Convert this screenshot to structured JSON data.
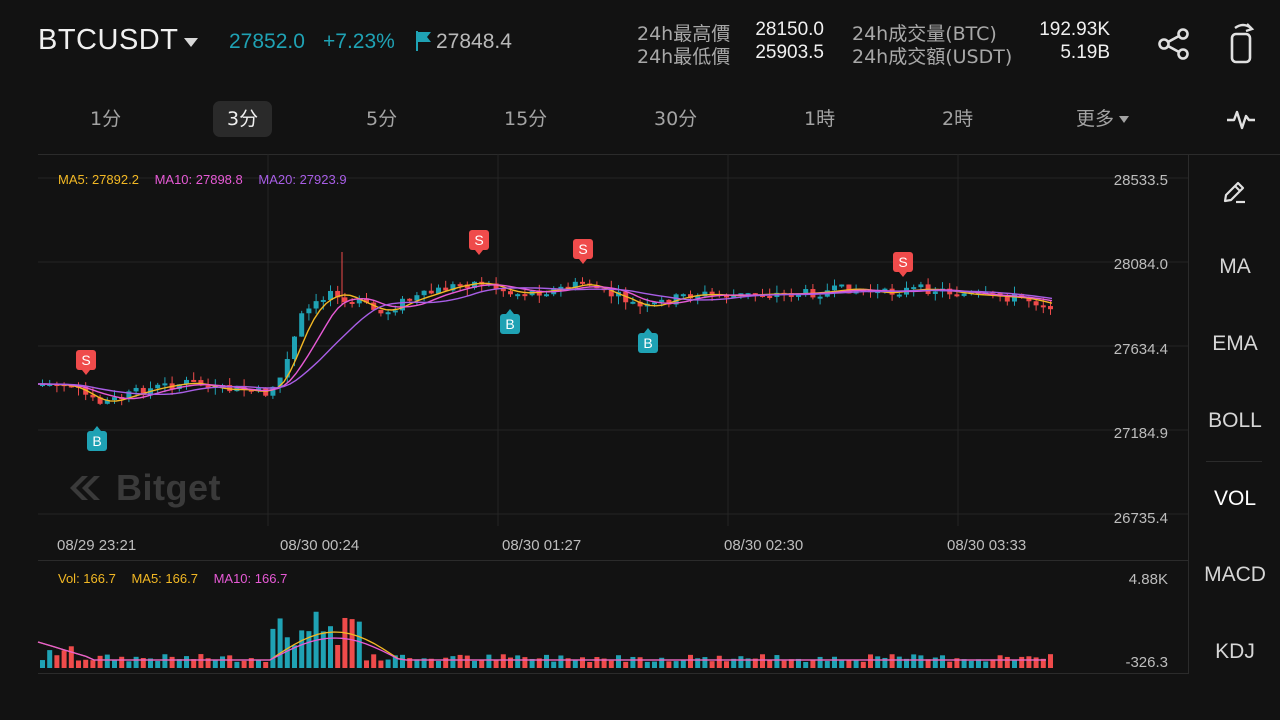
{
  "header": {
    "symbol": "BTCUSDT",
    "last_price": "27852.0",
    "change_pct": "+7.23%",
    "mark_price": "27848.4",
    "stats": {
      "high_label": "24h最高價",
      "high_value": "28150.0",
      "low_label": "24h最低價",
      "low_value": "25903.5",
      "vol_btc_label": "24h成交量(BTC)",
      "vol_btc_value": "192.93K",
      "vol_usdt_label": "24h成交額(USDT)",
      "vol_usdt_value": "5.19B"
    },
    "icons": {
      "dropdown": "chevron-down-icon",
      "mark": "flag-icon",
      "share": "share-icon",
      "rotate": "rotate-screen-icon"
    }
  },
  "timeframes": {
    "tabs": [
      "1分",
      "3分",
      "5分",
      "15分",
      "30分",
      "1時",
      "2時",
      "更多"
    ],
    "active": "3分",
    "indicator_icon": "pulse-icon"
  },
  "chart": {
    "ma_legend": {
      "ma5": "MA5: 27892.2",
      "ma10": "MA10: 27898.8",
      "ma20": "MA20: 27923.9"
    },
    "price_axis": [
      "28533.5",
      "28084.0",
      "27634.4",
      "27184.9",
      "26735.4"
    ],
    "time_axis": [
      "08/29 23:21",
      "08/30 00:24",
      "08/30 01:27",
      "08/30 02:30",
      "08/30 03:33"
    ],
    "volume_legend": {
      "vol": "Vol: 166.7",
      "ma5": "MA5: 166.7",
      "ma10": "MA10: 166.7"
    },
    "volume_axis": [
      "4.88K",
      "-326.3"
    ],
    "watermark": "Bitget",
    "trade_markers": {
      "buy": "B",
      "sell": "S"
    },
    "colors": {
      "up": "#1fa2b4",
      "down": "#ef4b4b",
      "ma5": "#f2b824",
      "ma10": "#e75ad6",
      "ma20": "#a85ee6"
    }
  },
  "side_panel": {
    "draw_icon": "pencil-icon",
    "items": [
      "MA",
      "EMA",
      "BOLL",
      "VOL",
      "MACD",
      "KDJ"
    ]
  }
}
